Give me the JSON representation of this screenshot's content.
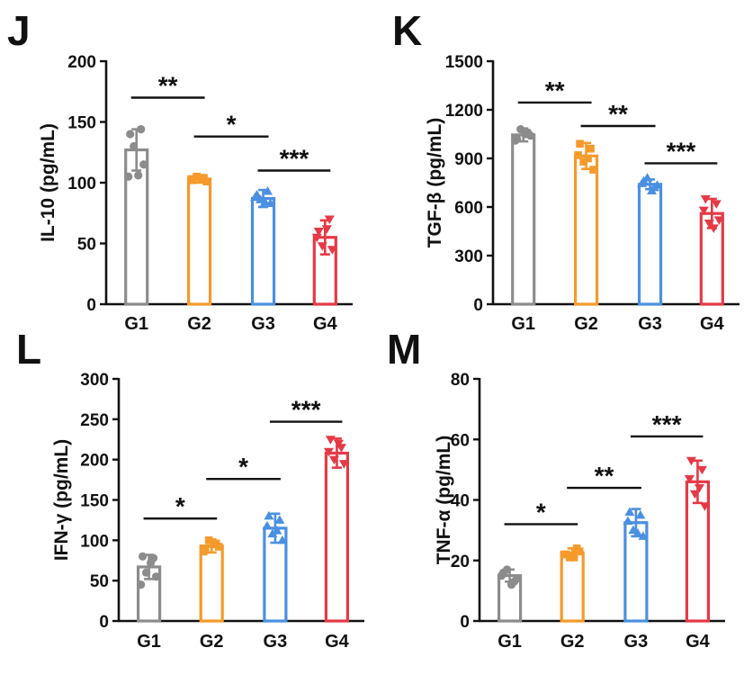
{
  "colors": {
    "G1": "#8c8c8c",
    "G2": "#f59a2b",
    "G3": "#4a90e2",
    "G4": "#e63946"
  },
  "chart_data": [
    {
      "panel": "J",
      "type": "bar",
      "ylabel": "IL-10 (pg/mL)",
      "categories": [
        "G1",
        "G2",
        "G3",
        "G4"
      ],
      "values": [
        127,
        103,
        87,
        55
      ],
      "errors": [
        17,
        3,
        7,
        14
      ],
      "points": [
        [
          140,
          144,
          130,
          115,
          105,
          106
        ],
        [
          102,
          104,
          105,
          101,
          103,
          104
        ],
        [
          90,
          93,
          86,
          83,
          88,
          84
        ],
        [
          60,
          70,
          48,
          45,
          55,
          62
        ]
      ],
      "ylim": [
        0,
        200
      ],
      "yticks": [
        "0",
        "50",
        "100",
        "150",
        "200"
      ],
      "ytick_values": [
        0,
        50,
        100,
        150,
        200
      ],
      "sig": [
        {
          "from": 0,
          "to": 1,
          "label": "**",
          "y": 170
        },
        {
          "from": 1,
          "to": 2,
          "label": "*",
          "y": 138
        },
        {
          "from": 2,
          "to": 3,
          "label": "***",
          "y": 110
        }
      ]
    },
    {
      "panel": "K",
      "type": "bar",
      "ylabel": "TGF-β (pg/mL)",
      "categories": [
        "G1",
        "G2",
        "G3",
        "G4"
      ],
      "values": [
        1045,
        915,
        740,
        560
      ],
      "errors": [
        40,
        80,
        30,
        90
      ],
      "points": [
        [
          1020,
          1060,
          1080,
          1040,
          1010,
          1050
        ],
        [
          990,
          960,
          880,
          830,
          920,
          900
        ],
        [
          760,
          720,
          780,
          735,
          745,
          700
        ],
        [
          650,
          620,
          500,
          520,
          580,
          470
        ]
      ],
      "ylim": [
        0,
        1500
      ],
      "yticks": [
        "0",
        "300",
        "600",
        "900",
        "1200",
        "1500"
      ],
      "ytick_values": [
        0,
        300,
        600,
        900,
        1200,
        1500
      ],
      "sig": [
        {
          "from": 0,
          "to": 1,
          "label": "**",
          "y": 1245
        },
        {
          "from": 1,
          "to": 2,
          "label": "**",
          "y": 1100
        },
        {
          "from": 2,
          "to": 3,
          "label": "***",
          "y": 870
        }
      ]
    },
    {
      "panel": "L",
      "type": "bar",
      "ylabel": "IFN-γ (pg/mL)",
      "categories": [
        "G1",
        "G2",
        "G3",
        "G4"
      ],
      "values": [
        67,
        93,
        115,
        208
      ],
      "errors": [
        15,
        8,
        18,
        18
      ],
      "points": [
        [
          80,
          78,
          60,
          55,
          45,
          72
        ],
        [
          88,
          96,
          100,
          92,
          86,
          95
        ],
        [
          130,
          125,
          108,
          100,
          118,
          112
        ],
        [
          225,
          215,
          200,
          195,
          210,
          220
        ]
      ],
      "ylim": [
        0,
        300
      ],
      "yticks": [
        "0",
        "50",
        "100",
        "150",
        "200",
        "250",
        "300"
      ],
      "ytick_values": [
        0,
        50,
        100,
        150,
        200,
        250,
        300
      ],
      "sig": [
        {
          "from": 0,
          "to": 1,
          "label": "*",
          "y": 127
        },
        {
          "from": 1,
          "to": 2,
          "label": "*",
          "y": 176
        },
        {
          "from": 2,
          "to": 3,
          "label": "***",
          "y": 247
        }
      ]
    },
    {
      "panel": "M",
      "type": "bar",
      "ylabel": "TNF-α (pg/mL)",
      "categories": [
        "G1",
        "G2",
        "G3",
        "G4"
      ],
      "values": [
        15,
        22.5,
        32.5,
        46
      ],
      "errors": [
        2,
        1.5,
        4.5,
        7
      ],
      "points": [
        [
          16,
          13,
          17,
          14,
          15,
          12
        ],
        [
          22,
          24,
          21,
          23,
          22,
          21
        ],
        [
          36,
          35,
          30,
          28,
          33,
          29
        ],
        [
          53,
          50,
          42,
          38,
          47,
          44
        ]
      ],
      "ylim": [
        0,
        80
      ],
      "yticks": [
        "0",
        "20",
        "40",
        "60",
        "80"
      ],
      "ytick_values": [
        0,
        20,
        40,
        60,
        80
      ],
      "sig": [
        {
          "from": 0,
          "to": 1,
          "label": "*",
          "y": 32
        },
        {
          "from": 1,
          "to": 2,
          "label": "**",
          "y": 44
        },
        {
          "from": 2,
          "to": 3,
          "label": "***",
          "y": 61
        }
      ]
    }
  ]
}
